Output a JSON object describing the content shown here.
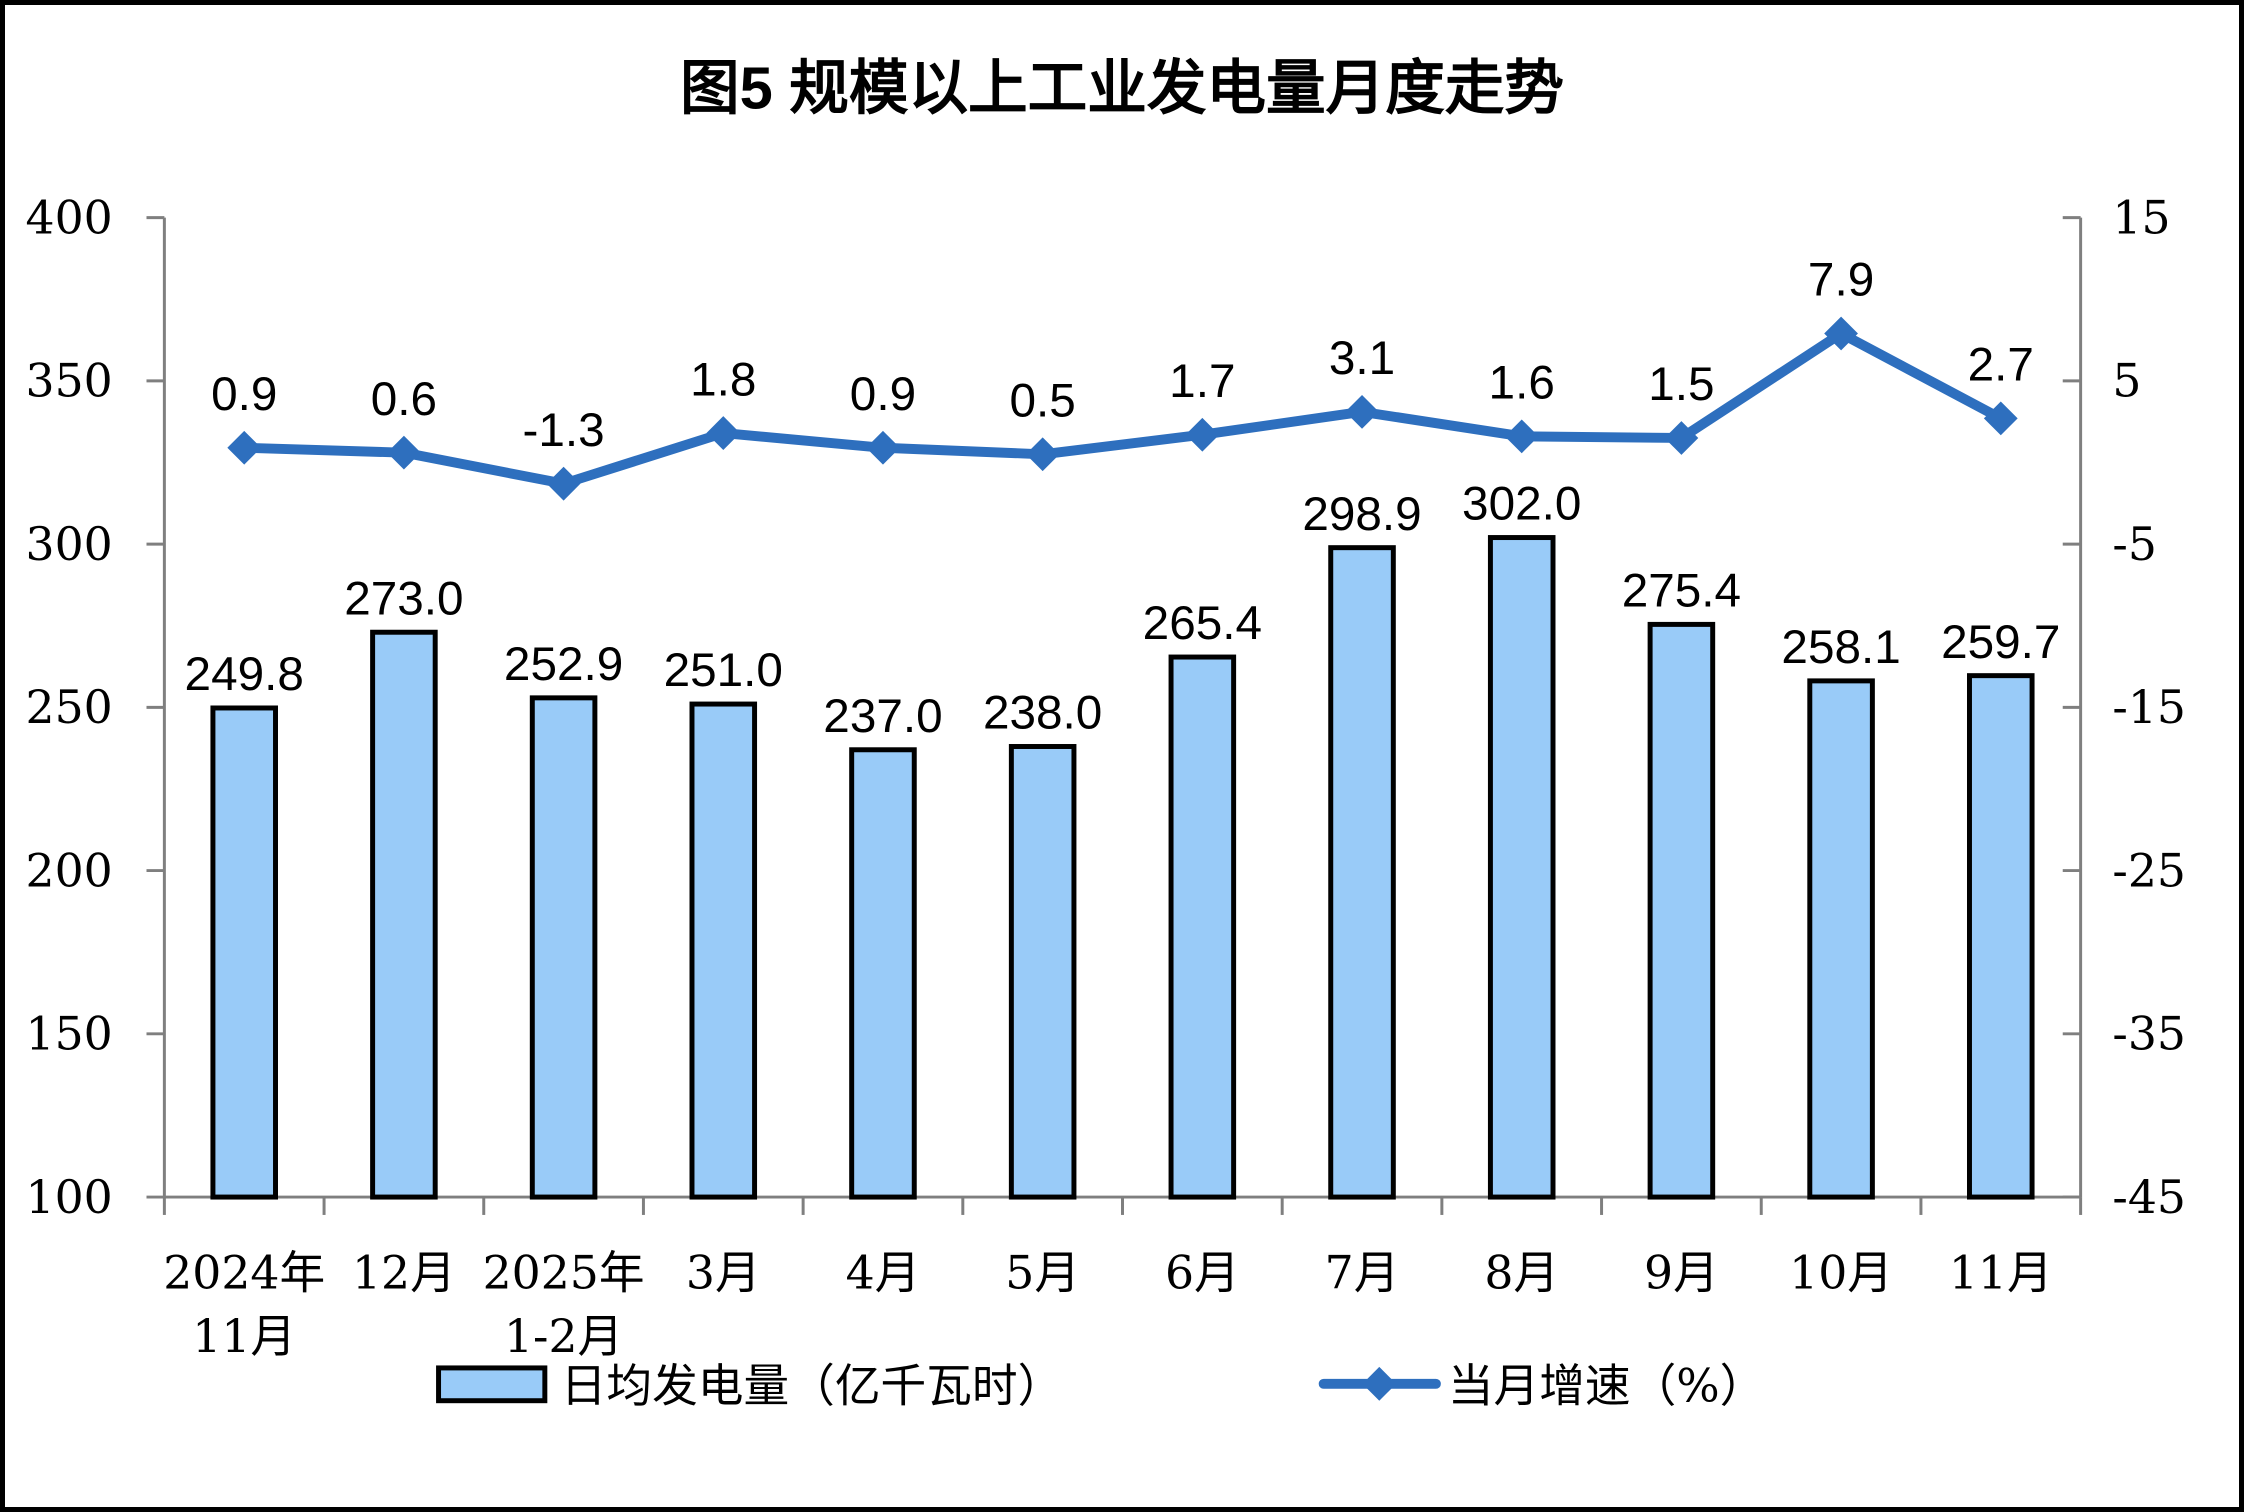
{
  "title": "图5 规模以上工业发电量月度走势",
  "chart_data": {
    "type": "bar",
    "subtype": "bar-line-combo",
    "title": "图5 规模以上工业发电量月度走势",
    "categories": [
      [
        "2024年",
        "11月"
      ],
      [
        "12月"
      ],
      [
        "2025年",
        "1-2月"
      ],
      [
        "3月"
      ],
      [
        "4月"
      ],
      [
        "5月"
      ],
      [
        "6月"
      ],
      [
        "7月"
      ],
      [
        "8月"
      ],
      [
        "9月"
      ],
      [
        "10月"
      ],
      [
        "11月"
      ]
    ],
    "series": [
      {
        "name": "日均发电量（亿千瓦时）",
        "type": "bar",
        "axis": "left",
        "values": [
          249.8,
          273.0,
          252.9,
          251.0,
          237.0,
          238.0,
          265.4,
          298.9,
          302.0,
          275.4,
          258.1,
          259.7
        ],
        "labels": [
          "249.8",
          "273.0",
          "252.9",
          "251.0",
          "237.0",
          "238.0",
          "265.4",
          "298.9",
          "302.0",
          "275.4",
          "258.1",
          "259.7"
        ]
      },
      {
        "name": "当月增速（%）",
        "type": "line",
        "axis": "right",
        "marker": "diamond",
        "values": [
          0.9,
          0.6,
          -1.3,
          1.8,
          0.9,
          0.5,
          1.7,
          3.1,
          1.6,
          1.5,
          7.9,
          2.7
        ],
        "labels": [
          "0.9",
          "0.6",
          "-1.3",
          "1.8",
          "0.9",
          "0.5",
          "1.7",
          "3.1",
          "1.6",
          "1.5",
          "7.9",
          "2.7"
        ]
      }
    ],
    "left_axis": {
      "min": 100,
      "max": 400,
      "step": 50,
      "tick_labels": [
        "400",
        "350",
        "300",
        "250",
        "200",
        "150",
        "100"
      ]
    },
    "right_axis": {
      "min": -45,
      "max": 15,
      "step": 10,
      "tick_labels": [
        "15",
        "5",
        "-5",
        "-15",
        "-25",
        "-35",
        "-45"
      ]
    },
    "grid": "off",
    "legend_position": "bottom",
    "legend": [
      {
        "label": "日均发电量（亿千瓦时）",
        "swatch": "bar"
      },
      {
        "label": "当月增速（%）",
        "swatch": "line-diamond"
      }
    ],
    "colors": {
      "bar_fill": "#99CBF8",
      "bar_border": "#000000",
      "line": "#2E6FBE",
      "axis": "#7F7F7F",
      "text": "#000000",
      "background": "#FFFFFF"
    }
  }
}
